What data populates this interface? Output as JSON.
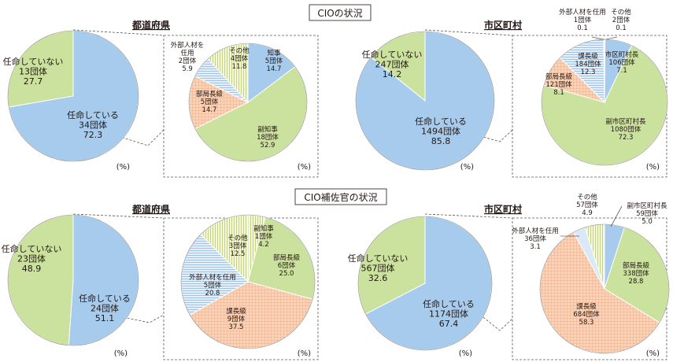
{
  "sections": {
    "cio_title": "CIOの状況",
    "deputy_title": "CIO補佐官の状況"
  },
  "labels": {
    "prefecture": "都道府県",
    "municipality": "市区町村",
    "percent_unit": "(%)"
  },
  "colors": {
    "appointed": "#a6cbed",
    "not_appointed": "#cbe19e",
    "appointed_fill": "#a6cbed",
    "green": "#cbe19e",
    "orange": "#f3c9ac",
    "blue_light": "#dbe9f7",
    "blue_mid": "#a6cbed",
    "yellow_light": "#f4f2c6",
    "stroke": "#ffffff",
    "dashed": "#595757"
  },
  "chart_data": [
    {
      "id": "cio-pref-overall",
      "type": "pie",
      "title": "都道府県",
      "unit": "(%)",
      "slices": [
        {
          "key": "appointed",
          "label": [
            "任命している",
            "34団体",
            "72.3"
          ],
          "count": 34,
          "percent": 72.3
        },
        {
          "key": "not_appointed",
          "label": [
            "任命していない",
            "13団体",
            "27.7"
          ],
          "count": 13,
          "percent": 27.7
        }
      ]
    },
    {
      "id": "cio-pref-breakdown",
      "type": "pie",
      "unit": "(%)",
      "slices": [
        {
          "key": "governor",
          "label": [
            "知事",
            "5団体",
            "14.7"
          ],
          "count": 5,
          "percent": 14.7
        },
        {
          "key": "vice_governor",
          "label": [
            "副知事",
            "18団体",
            "52.9"
          ],
          "count": 18,
          "percent": 52.9
        },
        {
          "key": "bureau_chief",
          "label": [
            "部局長級",
            "5団体",
            "14.7"
          ],
          "count": 5,
          "percent": 14.7
        },
        {
          "key": "external",
          "label": [
            "外部人材を",
            "任用",
            "2団体",
            "5.9"
          ],
          "count": 2,
          "percent": 5.9
        },
        {
          "key": "other",
          "label": [
            "その他",
            "4団体",
            "11.8"
          ],
          "count": 4,
          "percent": 11.8
        }
      ]
    },
    {
      "id": "cio-muni-overall",
      "type": "pie",
      "title": "市区町村",
      "unit": "(%)",
      "slices": [
        {
          "key": "appointed",
          "label": [
            "任命している",
            "1494団体",
            "85.8"
          ],
          "count": 1494,
          "percent": 85.8
        },
        {
          "key": "not_appointed",
          "label": [
            "任命していない",
            "247団体",
            "14.2"
          ],
          "count": 247,
          "percent": 14.2
        }
      ]
    },
    {
      "id": "cio-muni-breakdown",
      "type": "pie",
      "unit": "(%)",
      "slices": [
        {
          "key": "mayor",
          "label": [
            "市区町村長",
            "106団体",
            "7.1"
          ],
          "count": 106,
          "percent": 7.1
        },
        {
          "key": "vice_mayor",
          "label": [
            "副市区町村長",
            "1080団体",
            "72.3"
          ],
          "count": 1080,
          "percent": 72.3
        },
        {
          "key": "bureau_chief",
          "label": [
            "部局長級",
            "121団体",
            "8.1"
          ],
          "count": 121,
          "percent": 8.1
        },
        {
          "key": "section_chief",
          "label": [
            "課長級",
            "184団体",
            "12.3"
          ],
          "count": 184,
          "percent": 12.3
        },
        {
          "key": "external",
          "label": [
            "外部人材を任用",
            "1団体",
            "0.1"
          ],
          "count": 1,
          "percent": 0.1
        },
        {
          "key": "other",
          "label": [
            "その他",
            "2団体",
            "0.1"
          ],
          "count": 2,
          "percent": 0.1
        }
      ]
    },
    {
      "id": "deputy-pref-overall",
      "type": "pie",
      "title": "都道府県",
      "unit": "(%)",
      "slices": [
        {
          "key": "appointed",
          "label": [
            "任命している",
            "24団体",
            "51.1"
          ],
          "count": 24,
          "percent": 51.1
        },
        {
          "key": "not_appointed",
          "label": [
            "任命していない",
            "23団体",
            "48.9"
          ],
          "count": 23,
          "percent": 48.9
        }
      ]
    },
    {
      "id": "deputy-pref-breakdown",
      "type": "pie",
      "unit": "(%)",
      "slices": [
        {
          "key": "vice_governor",
          "label": [
            "副知事",
            "1団体",
            "4.2"
          ],
          "count": 1,
          "percent": 4.2
        },
        {
          "key": "bureau_chief",
          "label": [
            "部局長級",
            "6団体",
            "25.0"
          ],
          "count": 6,
          "percent": 25.0
        },
        {
          "key": "section_chief",
          "label": [
            "課長級",
            "9団体",
            "37.5"
          ],
          "count": 9,
          "percent": 37.5
        },
        {
          "key": "external",
          "label": [
            "外部人材を任用",
            "5団体",
            "20.8"
          ],
          "count": 5,
          "percent": 20.8
        },
        {
          "key": "other",
          "label": [
            "その他",
            "3団体",
            "12.5"
          ],
          "count": 3,
          "percent": 12.5
        }
      ]
    },
    {
      "id": "deputy-muni-overall",
      "type": "pie",
      "title": "市区町村",
      "unit": "(%)",
      "slices": [
        {
          "key": "appointed",
          "label": [
            "任命している",
            "1174団体",
            "67.4"
          ],
          "count": 1174,
          "percent": 67.4
        },
        {
          "key": "not_appointed",
          "label": [
            "任命していない",
            "567団体",
            "32.6"
          ],
          "count": 567,
          "percent": 32.6
        }
      ]
    },
    {
      "id": "deputy-muni-breakdown",
      "type": "pie",
      "unit": "(%)",
      "slices": [
        {
          "key": "vice_mayor",
          "label": [
            "副市区町村長",
            "59団体",
            "5.0"
          ],
          "count": 59,
          "percent": 5.0
        },
        {
          "key": "bureau_chief",
          "label": [
            "部局長級",
            "338団体",
            "28.8"
          ],
          "count": 338,
          "percent": 28.8
        },
        {
          "key": "section_chief",
          "label": [
            "課長級",
            "684団体",
            "58.3"
          ],
          "count": 684,
          "percent": 58.3
        },
        {
          "key": "external",
          "label": [
            "外部人材を任用",
            "36団体",
            "3.1"
          ],
          "count": 36,
          "percent": 3.1
        },
        {
          "key": "other",
          "label": [
            "その他",
            "57団体",
            "4.9"
          ],
          "count": 57,
          "percent": 4.9
        }
      ]
    }
  ]
}
